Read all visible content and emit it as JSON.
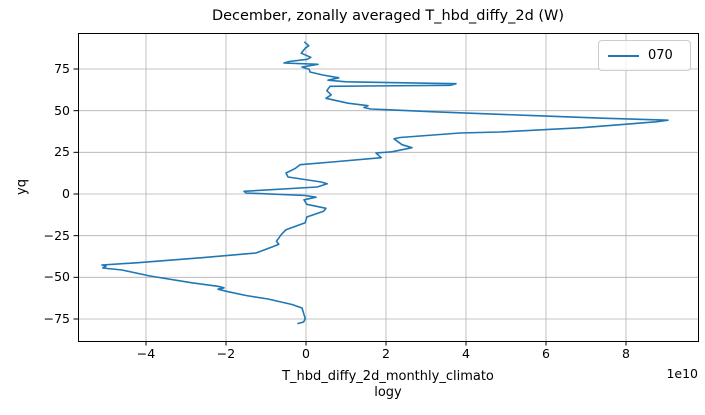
{
  "figure": {
    "background": "#ffffff"
  },
  "chart_data": {
    "type": "line",
    "title": "December, zonally averaged T_hbd_diffy_2d (W)",
    "ylabel": "yq",
    "xlabel_lines": [
      "T_hbd_diffy_2d_monthly_climato",
      "logy"
    ],
    "x_offset_label": "1e10",
    "xlim": [
      -5.7,
      9.8
    ],
    "ylim": [
      -88.2,
      96.6
    ],
    "xticks": [
      -4,
      -2,
      0,
      2,
      4,
      6,
      8
    ],
    "yticks": [
      75,
      50,
      25,
      0,
      -25,
      -50,
      -75
    ],
    "grid": true,
    "legend_position": "upper right",
    "colors": {
      "line": "#1f77b4",
      "grid": "#b0b0b0",
      "spine": "#000000",
      "legend_border": "#cccccc"
    },
    "legend": [
      {
        "label": "070"
      }
    ],
    "series": [
      {
        "name": "070",
        "color": "#1f77b4",
        "x_units": "1e10 W",
        "points": [
          [
            -0.03,
            91
          ],
          [
            0.07,
            89
          ],
          [
            -0.02,
            87.5
          ],
          [
            -0.12,
            84.5
          ],
          [
            0.12,
            82
          ],
          [
            0.03,
            80.8
          ],
          [
            -0.42,
            79.5
          ],
          [
            -0.55,
            78.6
          ],
          [
            0.3,
            77.8
          ],
          [
            -0.1,
            76.2
          ],
          [
            0.08,
            74.8
          ],
          [
            0.1,
            73.2
          ],
          [
            0.42,
            71.4
          ],
          [
            0.82,
            69.7
          ],
          [
            0.55,
            68.3
          ],
          [
            1.0,
            67.3
          ],
          [
            3.75,
            66.2
          ],
          [
            3.6,
            65.2
          ],
          [
            0.6,
            64.6
          ],
          [
            0.52,
            62
          ],
          [
            0.63,
            59.5
          ],
          [
            0.5,
            57.4
          ],
          [
            1.05,
            54.5
          ],
          [
            1.55,
            53
          ],
          [
            1.45,
            51.9
          ],
          [
            1.62,
            51
          ],
          [
            3.2,
            49.3
          ],
          [
            5.5,
            47.2
          ],
          [
            7.5,
            45.4
          ],
          [
            9.05,
            44.3
          ],
          [
            8.75,
            43.3
          ],
          [
            6.9,
            39.8
          ],
          [
            4.85,
            37.2
          ],
          [
            3.85,
            36.6
          ],
          [
            2.35,
            33.9
          ],
          [
            2.2,
            33.1
          ],
          [
            2.4,
            29.6
          ],
          [
            2.65,
            27.8
          ],
          [
            2.15,
            25.3
          ],
          [
            1.75,
            24.6
          ],
          [
            1.88,
            21.8
          ],
          [
            0.65,
            19.2
          ],
          [
            -0.15,
            17.6
          ],
          [
            -0.28,
            15.2
          ],
          [
            -0.5,
            12.6
          ],
          [
            -0.45,
            10.2
          ],
          [
            0.38,
            7.2
          ],
          [
            0.53,
            6.1
          ],
          [
            0.28,
            4.2
          ],
          [
            -1.55,
            1.6
          ],
          [
            -1.5,
            0.6
          ],
          [
            -0.02,
            -0.9
          ],
          [
            0.25,
            -1.9
          ],
          [
            -0.05,
            -3.5
          ],
          [
            0.02,
            -6.2
          ],
          [
            0.5,
            -8.6
          ],
          [
            0.44,
            -10.3
          ],
          [
            0.02,
            -13.8
          ],
          [
            -0.02,
            -17.2
          ],
          [
            -0.5,
            -21.4
          ],
          [
            -0.62,
            -24.4
          ],
          [
            -0.74,
            -28.4
          ],
          [
            -0.68,
            -30.2
          ],
          [
            -0.8,
            -31.4
          ],
          [
            -1.25,
            -35.4
          ],
          [
            -2.6,
            -38.2
          ],
          [
            -4.2,
            -41.2
          ],
          [
            -5.1,
            -42.6
          ],
          [
            -5.0,
            -43.4
          ],
          [
            -5.08,
            -44.4
          ],
          [
            -4.6,
            -45.6
          ],
          [
            -3.9,
            -49.2
          ],
          [
            -2.85,
            -53.3
          ],
          [
            -2.2,
            -55.4
          ],
          [
            -2.05,
            -56.3
          ],
          [
            -2.2,
            -57.1
          ],
          [
            -1.95,
            -58.6
          ],
          [
            -1.5,
            -60.9
          ],
          [
            -0.95,
            -63
          ],
          [
            -0.35,
            -66.3
          ],
          [
            -0.1,
            -68.4
          ],
          [
            -0.06,
            -71.5
          ],
          [
            -0.02,
            -74.8
          ],
          [
            -0.06,
            -76.8
          ],
          [
            -0.2,
            -77.7
          ]
        ]
      }
    ]
  }
}
